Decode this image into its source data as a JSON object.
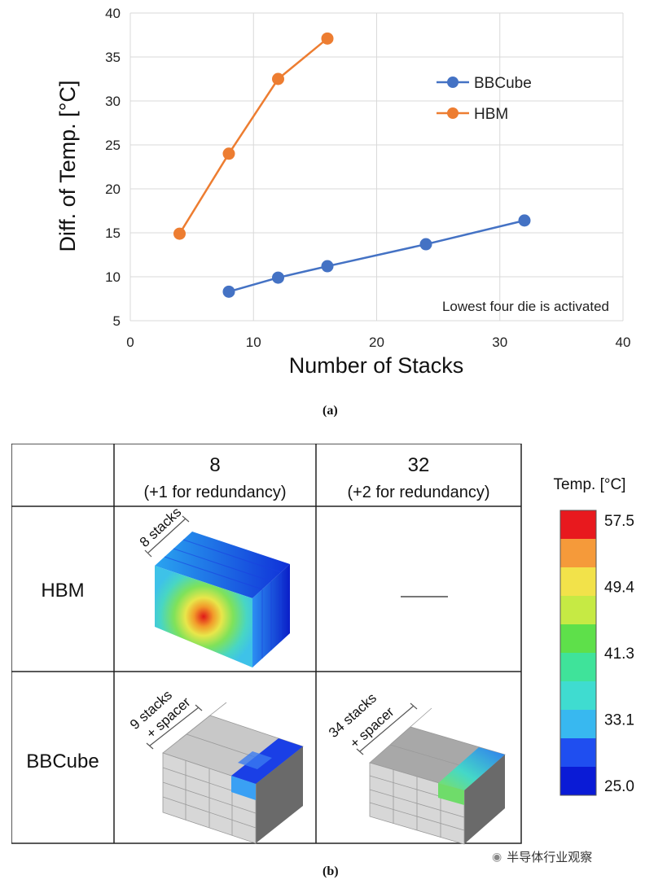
{
  "chart_data": {
    "type": "line",
    "xlabel": "Number  of Stacks",
    "ylabel": "Diff. of Temp. [°C]",
    "xlim": [
      0,
      40
    ],
    "ylim": [
      5,
      40
    ],
    "xticks": [
      0,
      10,
      20,
      30,
      40
    ],
    "yticks": [
      5,
      10,
      15,
      20,
      25,
      30,
      35,
      40
    ],
    "grid": true,
    "legend_position": "top-right",
    "annotation": "Lowest four die is activated",
    "series": [
      {
        "name": "BBCube",
        "color": "#4472c4",
        "x": [
          8,
          12,
          16,
          24,
          32
        ],
        "y": [
          8.3,
          9.9,
          11.2,
          13.7,
          16.4
        ]
      },
      {
        "name": "HBM",
        "color": "#ed7d31",
        "x": [
          4,
          8,
          12,
          16
        ],
        "y": [
          14.9,
          24.0,
          32.5,
          37.1
        ]
      }
    ]
  },
  "captions": {
    "a": "(a)",
    "b": "(b)"
  },
  "table": {
    "col1_title": "8",
    "col1_sub": "(+1 for redundancy)",
    "col2_title": "32",
    "col2_sub": "(+2 for redundancy)",
    "row1_label": "HBM",
    "row2_label": "BBCube",
    "hbm8_stack_label": "8 stacks",
    "bb8_stack_label_1": "9 stacks",
    "bb8_stack_label_2": "+ spacer",
    "bb32_stack_label_1": "34 stacks",
    "bb32_stack_label_2": "+ spacer"
  },
  "colorbar": {
    "title": "Temp. [°C]",
    "ticks": [
      "57.5",
      "49.4",
      "41.3",
      "33.1",
      "25.0"
    ],
    "colors": [
      "#e8191e",
      "#f59a3a",
      "#f2e24a",
      "#c6ea44",
      "#5ee04a",
      "#3fe39a",
      "#3fdcd0",
      "#38b8f0",
      "#1f4ef0",
      "#0a1bd6"
    ]
  },
  "watermark": "半导体行业观察"
}
